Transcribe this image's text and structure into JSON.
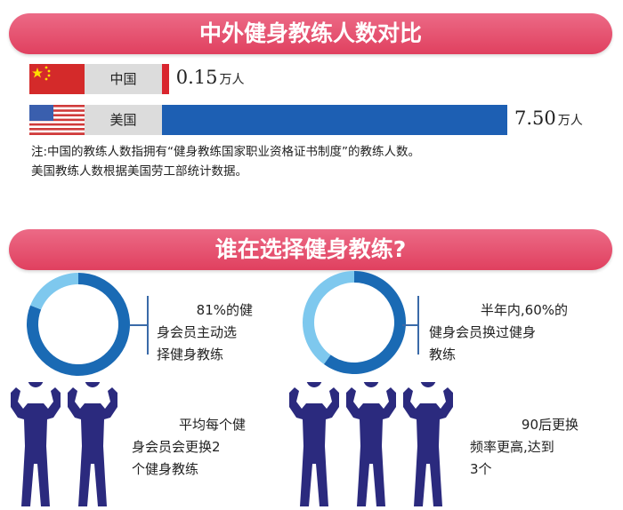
{
  "section1": {
    "title": "中外健身教练人数对比"
  },
  "chart_data": [
    {
      "type": "bar",
      "orientation": "horizontal",
      "categories": [
        "中国",
        "美国"
      ],
      "values": [
        0.15,
        7.5
      ],
      "value_labels": [
        "0.15",
        "7.50"
      ],
      "unit": "万人",
      "colors": [
        "#d9252e",
        "#1d5fb3"
      ]
    },
    {
      "type": "pie",
      "style": "donut",
      "values": [
        81,
        19
      ],
      "colors": [
        "#1a6ab4",
        "#7ec8ee"
      ],
      "annotation": "81%的健身会员主动选择健身教练"
    },
    {
      "type": "pie",
      "style": "donut",
      "values": [
        60,
        40
      ],
      "colors": [
        "#1a6ab4",
        "#7ec8ee"
      ],
      "annotation": "半年内,60%的健身会员换过健身教练"
    }
  ],
  "note": {
    "line1": "注:中国的教练人数指拥有“健身教练国家职业资格证书制度”的教练人数。",
    "line2": "美国教练人数根据美国劳工部统计数据。"
  },
  "section2": {
    "title": "谁在选择健身教练?"
  },
  "donut_texts": [
    [
      "81%的健",
      "身会员主动选",
      "择健身教练"
    ],
    [
      "半年内,60%的",
      "健身会员换过健身",
      "教练"
    ]
  ],
  "figure_texts": [
    [
      "平均每个健",
      "身会员会更换2",
      "个健身教练"
    ],
    [
      "90后更换",
      "频率更高,达到",
      "3个"
    ]
  ],
  "figure_counts": [
    2,
    3
  ],
  "figure_color": "#2b2a7e",
  "icons": [
    "china-flag-icon",
    "usa-flag-icon",
    "muscle-man-icon"
  ]
}
